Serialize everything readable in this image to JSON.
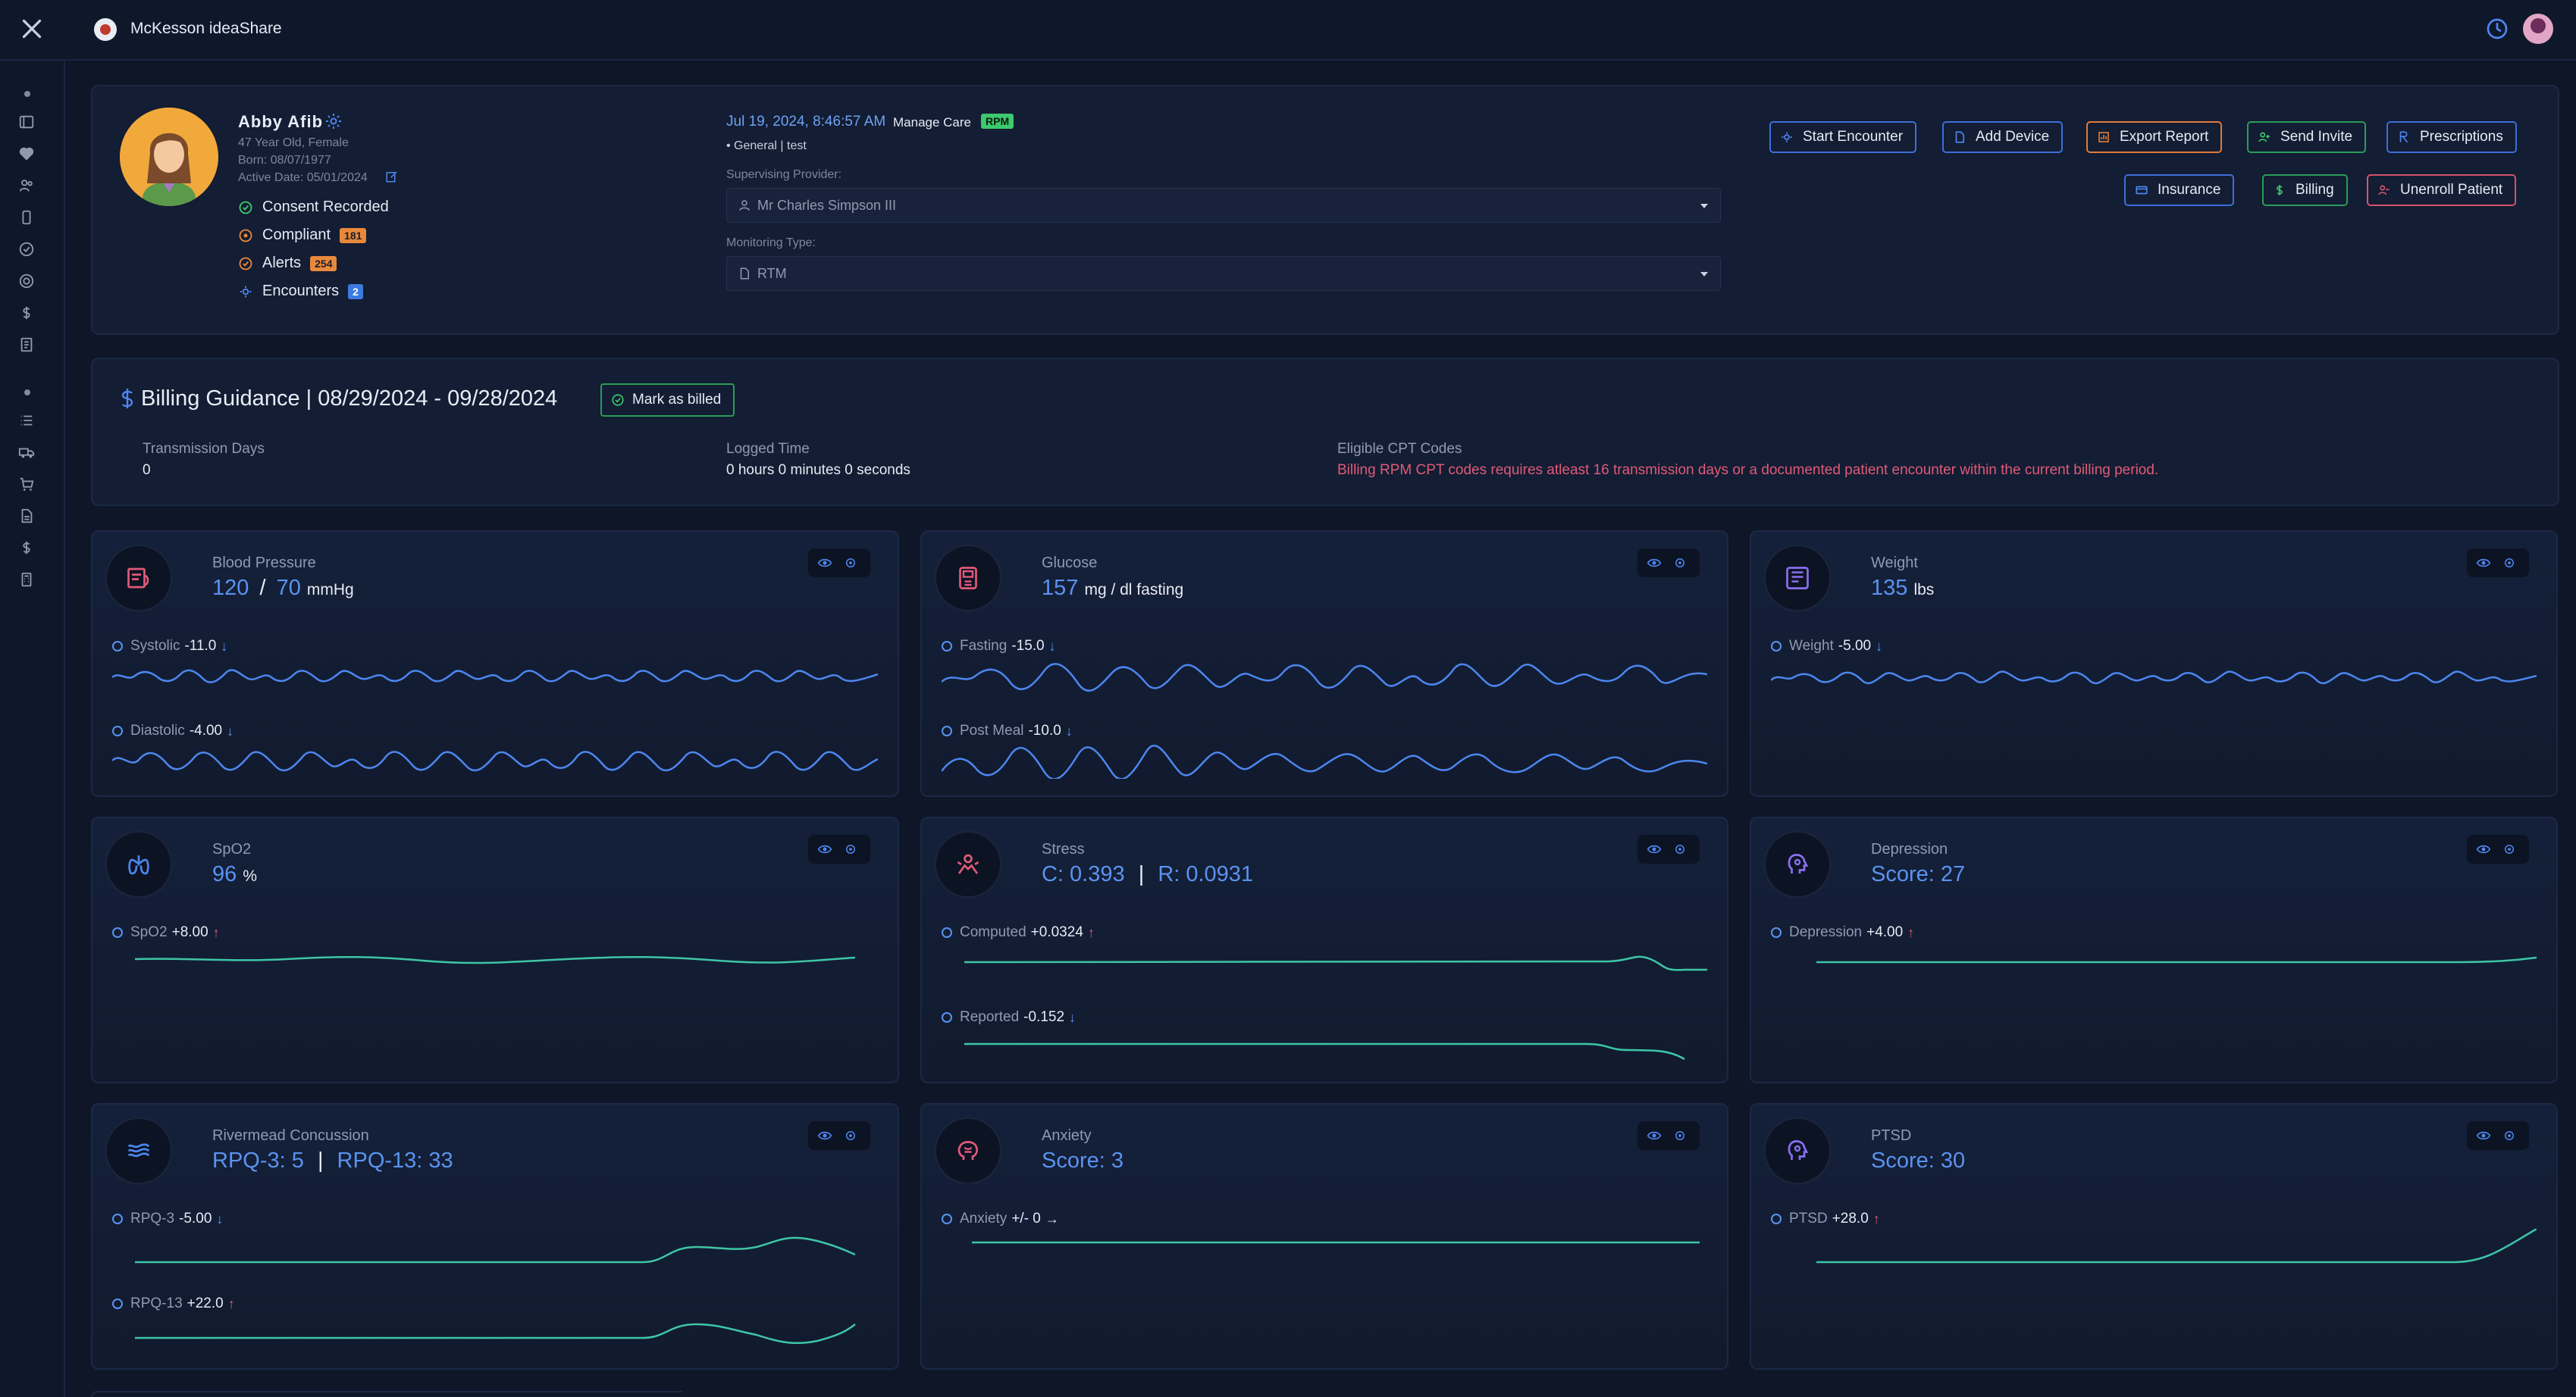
{
  "app": {
    "title": "McKesson ideaShare"
  },
  "patient": {
    "name": "Abby Afib",
    "age_gender": "47 Year Old, Female",
    "born": "Born: 08/07/1977",
    "active_date": "Active Date: 05/01/2024",
    "statuses": [
      {
        "label": "Consent Recorded",
        "badge": ""
      },
      {
        "label": "Compliant",
        "badge": "181"
      },
      {
        "label": "Alerts",
        "badge": "254"
      },
      {
        "label": "Encounters",
        "badge": "2"
      }
    ]
  },
  "encounter": {
    "datetime": "Jul 19, 2024, 8:46:57 AM",
    "care_label": "Manage Care",
    "program_badge": "RPM",
    "general": "• General | test",
    "supervising_label": "Supervising Provider:",
    "supervising_value": "Mr Charles Simpson III",
    "monitoring_label": "Monitoring Type:",
    "monitoring_value": "RTM"
  },
  "actions": {
    "start_encounter": "Start Encounter",
    "add_device": "Add Device",
    "export_report": "Export Report",
    "send_invite": "Send Invite",
    "prescriptions": "Prescriptions",
    "insurance": "Insurance",
    "billing": "Billing",
    "unenroll": "Unenroll Patient"
  },
  "colors": {
    "blue_border": "#3d6fd8",
    "orange_border": "#e07a3a",
    "green_border": "#2a9d57",
    "red_border": "#d4536d"
  },
  "billing": {
    "title": "Billing Guidance | 08/29/2024 - 09/28/2024",
    "mark_billed": "Mark as billed",
    "transmission_label": "Transmission Days",
    "transmission_value": "0",
    "logged_label": "Logged Time",
    "logged_value": "0 hours 0 minutes 0 seconds",
    "cpt_label": "Eligible CPT Codes",
    "cpt_warning": "Billing RPM CPT codes requires atleast 16 transmission days or a documented patient encounter within the current billing period."
  },
  "cards": {
    "bp": {
      "title": "Blood Pressure",
      "v1": "120",
      "sep": "/",
      "v2": "70",
      "unit": "mmHg",
      "s1_label": "Systolic",
      "s1_delta": "-11.0",
      "s1_arrow": "↓",
      "s2_label": "Diastolic",
      "s2_delta": "-4.00",
      "s2_arrow": "↓"
    },
    "glucose": {
      "title": "Glucose",
      "v1": "157",
      "unit": "mg / dl fasting",
      "s1_label": "Fasting",
      "s1_delta": "-15.0",
      "s1_arrow": "↓",
      "s2_label": "Post Meal",
      "s2_delta": "-10.0",
      "s2_arrow": "↓"
    },
    "weight": {
      "title": "Weight",
      "v1": "135",
      "unit": "lbs",
      "s1_label": "Weight",
      "s1_delta": "-5.00",
      "s1_arrow": "↓"
    },
    "spo2": {
      "title": "SpO2",
      "v1": "96",
      "unit": "%",
      "s1_label": "SpO2",
      "s1_delta": "+8.00",
      "s1_arrow": "↑"
    },
    "stress": {
      "title": "Stress",
      "v1": "C: 0.393",
      "sep": "|",
      "v2": "R: 0.0931",
      "s1_label": "Computed",
      "s1_delta": "+0.0324",
      "s1_arrow": "↑",
      "s2_label": "Reported",
      "s2_delta": "-0.152",
      "s2_arrow": "↓"
    },
    "depression": {
      "title": "Depression",
      "v1": "Score: 27",
      "s1_label": "Depression",
      "s1_delta": "+4.00",
      "s1_arrow": "↑"
    },
    "rivermead": {
      "title": "Rivermead Concussion",
      "v1": "RPQ-3: 5",
      "sep": "|",
      "v2": "RPQ-13: 33",
      "s1_label": "RPQ-3",
      "s1_delta": "-5.00",
      "s1_arrow": "↓",
      "s2_label": "RPQ-13",
      "s2_delta": "+22.0",
      "s2_arrow": "↑"
    },
    "anxiety": {
      "title": "Anxiety",
      "v1": "Score: 3",
      "s1_label": "Anxiety",
      "s1_delta": "+/- 0",
      "s1_arrow": "→"
    },
    "ptsd": {
      "title": "PTSD",
      "v1": "Score: 30",
      "s1_label": "PTSD",
      "s1_delta": "+28.0",
      "s1_arrow": "↑"
    }
  },
  "icons": {
    "close": "close-icon",
    "clock": "clock-icon",
    "gear": "gear-icon",
    "eye": "eye-icon",
    "settings": "settings-icon"
  }
}
